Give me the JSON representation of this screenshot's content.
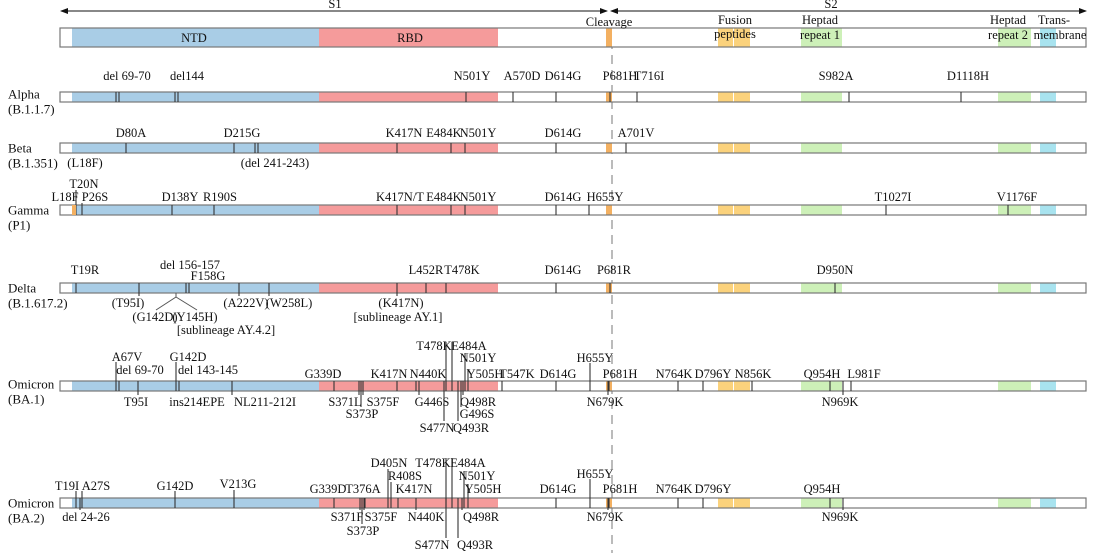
{
  "header": {
    "s1": "S1",
    "s2": "S2",
    "ntd": "NTD",
    "rbd": "RBD",
    "cleavage": "Cleavage",
    "fusion": [
      "Fusion",
      "peptides"
    ],
    "hr1": [
      "Heptad",
      "repeat 1"
    ],
    "hr2": [
      "Heptad",
      "repeat 2"
    ],
    "tm": [
      "Trans-",
      "membrane"
    ]
  },
  "colors": {
    "ntd": "#a9cde6",
    "rbd": "#f59b9b",
    "cleavage": "#f3b061",
    "fusion": "#fbd27c",
    "heptad": "#cdf0b8",
    "transmembrane": "#a8e3ef",
    "outline": "#777777",
    "tick": "#333333",
    "dashed": "#bbbbbb"
  },
  "variants": [
    {
      "name": "Alpha",
      "lineage": "(B.1.1.7)",
      "above": [
        "del 69-70",
        "del144",
        "N501Y",
        "A570D",
        "D614G",
        "P681H",
        "T716I",
        "S982A",
        "D1118H"
      ],
      "below": []
    },
    {
      "name": "Beta",
      "lineage": "(B.1.351)",
      "above": [
        "D80A",
        "D215G",
        "K417N",
        "E484K",
        "N501Y",
        "D614G",
        "A701V"
      ],
      "below": [
        "(L18F)",
        "(del 241-243)"
      ]
    },
    {
      "name": "Gamma",
      "lineage": "(P1)",
      "above": [
        "L18F",
        "T20N",
        "P26S",
        "D138Y",
        "R190S",
        "K417N/T",
        "E484K",
        "N501Y",
        "D614G",
        "H655Y",
        "T1027I",
        "V1176F"
      ],
      "below": []
    },
    {
      "name": "Delta",
      "lineage": "(B.1.617.2)",
      "above": [
        "T19R",
        "del 156-157",
        "F158G",
        "L452R",
        "T478K",
        "D614G",
        "P681R",
        "D950N"
      ],
      "below": [
        "(T95I)",
        "(G142D)",
        "(Y145H)",
        "[sublineage AY.4.2]",
        "(A222V)",
        "(W258L)",
        "(K417N)",
        "[sublineage AY.1]"
      ]
    },
    {
      "name": "Omicron",
      "lineage": "(BA.1)",
      "above": [
        "A67V",
        "del 69-70",
        "G142D",
        "del 143-145",
        "G339D",
        "K417N",
        "N440K",
        "T478K",
        "E484A",
        "N501Y",
        "Y505H",
        "T547K",
        "D614G",
        "H655Y",
        "P681H",
        "N764K",
        "D796Y",
        "N856K",
        "Q954H",
        "L981F"
      ],
      "below": [
        "T95I",
        "ins214EPE",
        "NL211-212I",
        "S371L",
        "S373P",
        "S375F",
        "G446S",
        "S477N",
        "Q498R",
        "G496S",
        "Q493R",
        "N679K",
        "N969K"
      ]
    },
    {
      "name": "Omicron",
      "lineage": "(BA.2)",
      "above": [
        "T19I",
        "A27S",
        "G142D",
        "V213G",
        "G339D",
        "T376A",
        "D405N",
        "R408S",
        "K417N",
        "T478K",
        "E484A",
        "N501Y",
        "Y505H",
        "D614G",
        "H655Y",
        "P681H",
        "N764K",
        "D796Y",
        "Q954H"
      ],
      "below": [
        "del 24-26",
        "S371F",
        "S373P",
        "S375F",
        "N440K",
        "S477N",
        "Q493R",
        "Q498R",
        "N679K",
        "N969K"
      ]
    }
  ]
}
